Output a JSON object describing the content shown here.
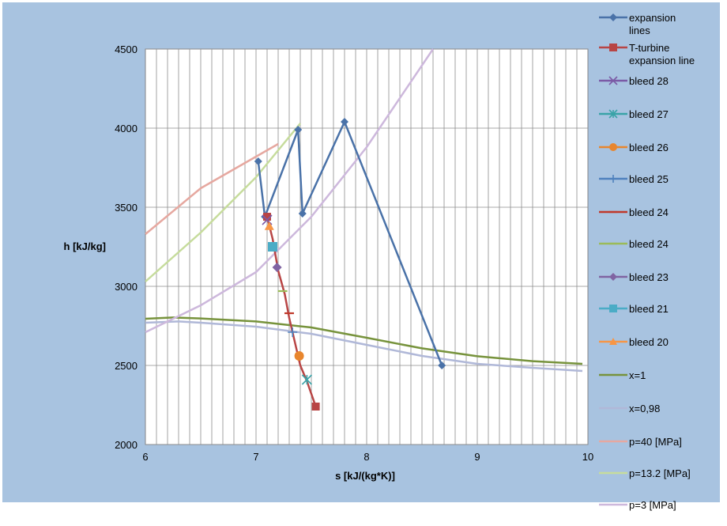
{
  "chart_data": {
    "type": "scatter",
    "title": "",
    "xlabel": "s [kJ/(kg*K)]",
    "ylabel": "h [kJ/kg]",
    "xlim": [
      6,
      10
    ],
    "ylim": [
      2000,
      4500
    ],
    "xticks": [
      6,
      7,
      8,
      9,
      10
    ],
    "xtick_labels": [
      "6",
      "7",
      "8",
      "9",
      "10"
    ],
    "yticks": [
      2000,
      2500,
      3000,
      3500,
      4000,
      4500
    ],
    "ytick_labels": [
      "2000",
      "2500",
      "3000",
      "3500",
      "4000",
      "4500"
    ],
    "grid": "vertical lines every 0.1 s, horizontal lines every 500 h",
    "legend_position": "right",
    "background_color": "#a8c3e0",
    "plot_background_color": "#ffffff",
    "series": [
      {
        "name": "expansion lines",
        "color": "#4a72a8",
        "marker": "diamond",
        "line": true,
        "points": [
          [
            7.02,
            3790
          ],
          [
            7.08,
            3440
          ],
          [
            7.38,
            3990
          ],
          [
            7.42,
            3460
          ],
          [
            7.8,
            4040
          ],
          [
            8.68,
            2500
          ]
        ]
      },
      {
        "name": "T-turbine expansion line",
        "color": "#b84545",
        "marker": "square",
        "line": true,
        "points": [
          [
            7.1,
            3440
          ],
          [
            7.15,
            3300
          ],
          [
            7.2,
            3100
          ],
          [
            7.26,
            2950
          ],
          [
            7.3,
            2800
          ],
          [
            7.35,
            2650
          ],
          [
            7.4,
            2500
          ],
          [
            7.46,
            2400
          ],
          [
            7.54,
            2240
          ]
        ]
      },
      {
        "name": "bleed 28",
        "color": "#7b5aa6",
        "marker": "x",
        "line": false,
        "points": [
          [
            7.1,
            3420
          ]
        ]
      },
      {
        "name": "bleed 27",
        "color": "#3aa3a8",
        "marker": "asterisk",
        "line": false,
        "points": [
          [
            7.46,
            2410
          ]
        ]
      },
      {
        "name": "bleed 26",
        "color": "#e8862e",
        "marker": "circle",
        "line": false,
        "points": [
          [
            7.39,
            2560
          ]
        ]
      },
      {
        "name": "bleed 25",
        "color": "#4f81bd",
        "marker": "plus",
        "line": false,
        "points": [
          [
            7.33,
            2710
          ]
        ]
      },
      {
        "name": "bleed 24",
        "color": "#c0392b",
        "marker": "dash",
        "line": false,
        "points": [
          [
            7.3,
            2830
          ]
        ]
      },
      {
        "name": "bleed 24",
        "color": "#9bbb59",
        "marker": "dash",
        "line": false,
        "points": [
          [
            7.24,
            2970
          ]
        ]
      },
      {
        "name": "bleed 23",
        "color": "#8064a2",
        "marker": "diamond",
        "line": false,
        "points": [
          [
            7.19,
            3120
          ]
        ]
      },
      {
        "name": "bleed 21",
        "color": "#4bacc6",
        "marker": "square",
        "line": false,
        "points": [
          [
            7.15,
            3250
          ]
        ]
      },
      {
        "name": "bleed 20",
        "color": "#f79646",
        "marker": "triangle",
        "line": false,
        "points": [
          [
            7.12,
            3380
          ]
        ]
      },
      {
        "name": "x=1",
        "color": "#77933c",
        "marker": "none",
        "line": true,
        "points": [
          [
            6.0,
            2795
          ],
          [
            6.25,
            2803
          ],
          [
            6.5,
            2797
          ],
          [
            7.0,
            2778
          ],
          [
            7.5,
            2740
          ],
          [
            8.0,
            2675
          ],
          [
            8.5,
            2608
          ],
          [
            9.0,
            2558
          ],
          [
            9.5,
            2527
          ],
          [
            9.95,
            2510
          ]
        ]
      },
      {
        "name": "x=0,98",
        "color": "#b0b8d8",
        "marker": "none",
        "line": true,
        "points": [
          [
            6.0,
            2770
          ],
          [
            6.3,
            2778
          ],
          [
            6.5,
            2770
          ],
          [
            7.0,
            2745
          ],
          [
            7.5,
            2700
          ],
          [
            8.0,
            2630
          ],
          [
            8.5,
            2560
          ],
          [
            9.0,
            2510
          ],
          [
            9.5,
            2485
          ],
          [
            9.95,
            2465
          ]
        ]
      },
      {
        "name": "p=40 [MPa]",
        "color": "#e6a8a0",
        "marker": "none",
        "line": true,
        "points": [
          [
            6.0,
            3330
          ],
          [
            6.5,
            3620
          ],
          [
            7.2,
            3900
          ]
        ]
      },
      {
        "name": "p=13.2 [MPa]",
        "color": "#c6dc9c",
        "marker": "none",
        "line": true,
        "points": [
          [
            6.0,
            3030
          ],
          [
            6.5,
            3340
          ],
          [
            7.0,
            3690
          ],
          [
            7.4,
            4030
          ]
        ]
      },
      {
        "name": "p=3 [MPa]",
        "color": "#cdb8dc",
        "marker": "none",
        "line": true,
        "points": [
          [
            6.0,
            2710
          ],
          [
            6.5,
            2880
          ],
          [
            7.0,
            3090
          ],
          [
            7.5,
            3440
          ],
          [
            8.0,
            3880
          ],
          [
            8.6,
            4500
          ]
        ]
      }
    ]
  }
}
